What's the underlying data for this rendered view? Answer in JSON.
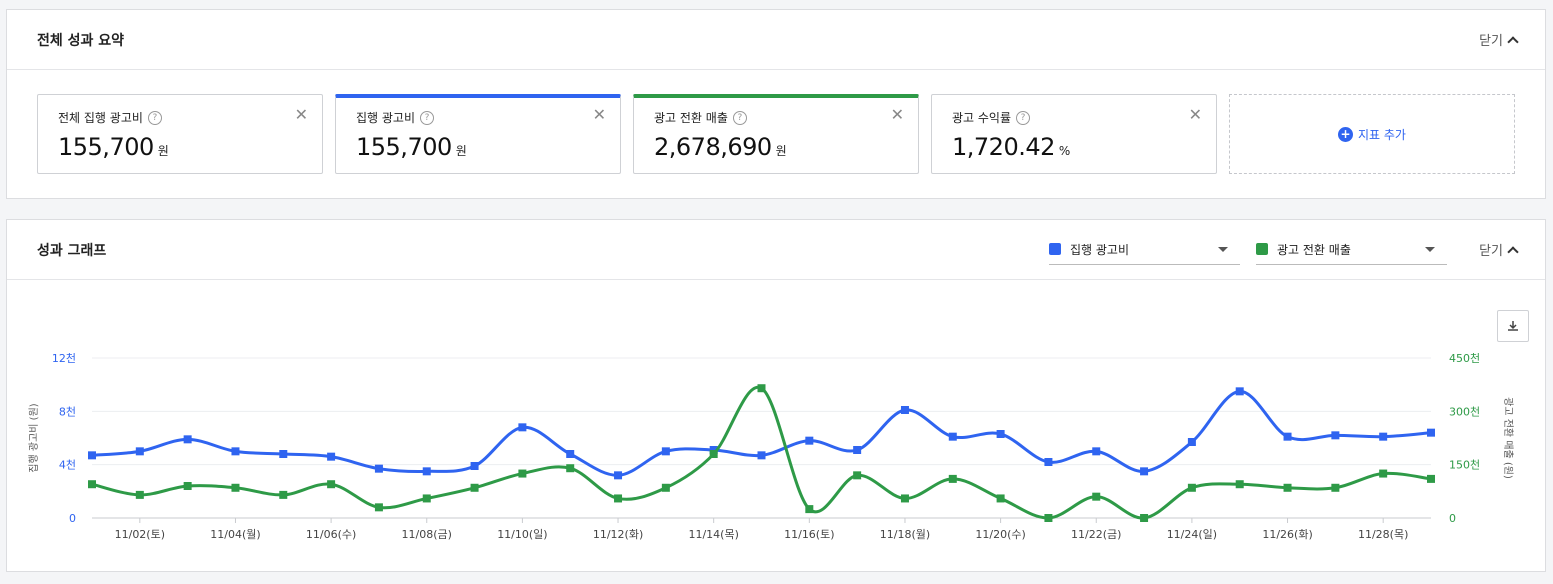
{
  "summary": {
    "title": "전체 성과 요약",
    "collapse_label": "닫기",
    "cards": [
      {
        "label": "전체 집행 광고비",
        "value": "155,700",
        "unit": "원"
      },
      {
        "label": "집행 광고비",
        "value": "155,700",
        "unit": "원"
      },
      {
        "label": "광고 전환 매출",
        "value": "2,678,690",
        "unit": "원"
      },
      {
        "label": "광고 수익률",
        "value": "1,720.42",
        "unit": "%"
      }
    ],
    "add_metric_label": "지표 추가",
    "help_glyph": "?",
    "close_glyph": "✕",
    "plus_glyph": "+"
  },
  "graph": {
    "title": "성과 그래프",
    "collapse_label": "닫기",
    "selects": [
      {
        "label": "집행 광고비",
        "color": "#2f64f0"
      },
      {
        "label": "광고 전환 매출",
        "color": "#2e9a47"
      }
    ]
  },
  "chart_data": {
    "type": "line",
    "x": [
      "11/01",
      "11/02",
      "11/03",
      "11/04",
      "11/05",
      "11/06",
      "11/07",
      "11/08",
      "11/09",
      "11/10",
      "11/11",
      "11/12",
      "11/13",
      "11/14",
      "11/15",
      "11/16",
      "11/17",
      "11/18",
      "11/19",
      "11/20",
      "11/21",
      "11/22",
      "11/23",
      "11/24",
      "11/25",
      "11/26",
      "11/27",
      "11/28",
      "11/29"
    ],
    "x_tick_labels": [
      "11/02(토)",
      "11/04(월)",
      "11/06(수)",
      "11/08(금)",
      "11/10(일)",
      "11/12(화)",
      "11/14(목)",
      "11/16(토)",
      "11/18(월)",
      "11/20(수)",
      "11/22(금)",
      "11/24(일)",
      "11/26(화)",
      "11/28(목)"
    ],
    "x_tick_indices": [
      1,
      3,
      5,
      7,
      9,
      11,
      13,
      15,
      17,
      19,
      21,
      23,
      25,
      27
    ],
    "series": [
      {
        "name": "집행 광고비",
        "axis": "left",
        "color": "#2f64f0",
        "values": [
          4700,
          5000,
          5900,
          5000,
          4800,
          4600,
          3700,
          3500,
          3900,
          6800,
          4800,
          3200,
          5000,
          5100,
          4700,
          5800,
          5100,
          8100,
          6100,
          6300,
          4200,
          5000,
          3500,
          5700,
          9500,
          6100,
          6200,
          6100,
          6400
        ]
      },
      {
        "name": "광고 전환 매출",
        "axis": "right",
        "color": "#2e9a47",
        "values": [
          95,
          65,
          90,
          85,
          65,
          95,
          30,
          55,
          85,
          125,
          140,
          55,
          85,
          180,
          365,
          25,
          120,
          55,
          110,
          55,
          0,
          60,
          0,
          85,
          95,
          85,
          85,
          125,
          110
        ]
      }
    ],
    "y_left": {
      "label": "집행 광고비 (원)",
      "ticks": [
        0,
        4000,
        8000,
        12000
      ],
      "tick_labels": [
        "0",
        "4천",
        "8천",
        "12천"
      ],
      "range": [
        0,
        12000
      ]
    },
    "y_right": {
      "label": "광고 전환 매출 (원)",
      "ticks": [
        0,
        150000,
        300000,
        450000
      ],
      "tick_labels": [
        "0",
        "150천",
        "300천",
        "450천"
      ],
      "range": [
        0,
        450
      ]
    },
    "grid": true
  }
}
